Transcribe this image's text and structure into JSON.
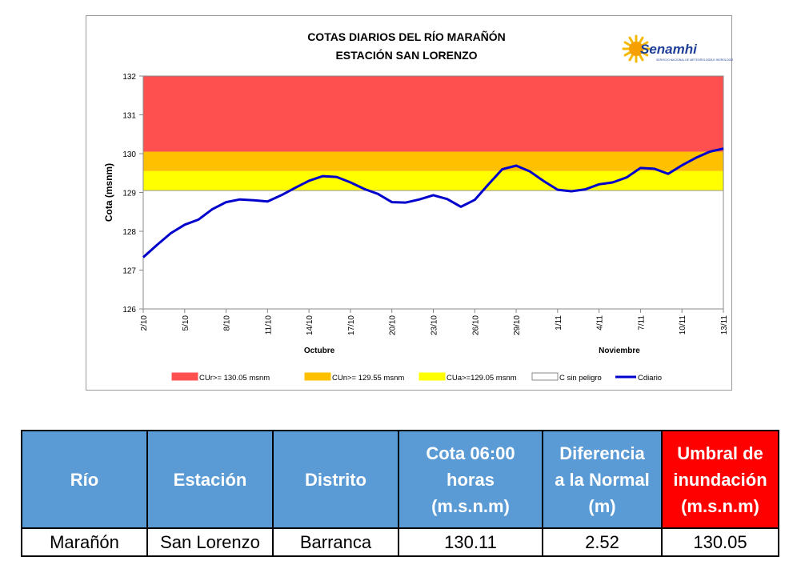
{
  "chart_data": {
    "type": "line",
    "title_lines": [
      "COTAS DIARIOS DEL RÍO MARAÑÓN",
      "ESTACIÓN SAN LORENZO"
    ],
    "ylabel": "Cota (msnm)",
    "ylim": [
      126,
      132
    ],
    "yticks": [
      "126",
      "127",
      "128",
      "129",
      "130",
      "131",
      "132"
    ],
    "x_tick_labels": [
      "2/10",
      "5/10",
      "8/10",
      "11/10",
      "14/10",
      "17/10",
      "20/10",
      "23/10",
      "26/10",
      "29/10",
      "1/11",
      "4/11",
      "7/11",
      "10/11",
      "13/11"
    ],
    "month_labels": [
      "Octubre",
      "Noviembre"
    ],
    "grid": false,
    "legend_position": "bottom",
    "logo": {
      "text": "Senamhi",
      "caption": "SERVICIO NACIONAL DE METEOROLOGÍA E HIDROLOGÍA DEL PERÚ"
    },
    "bands": [
      {
        "name": "CUr>= 130.05 msnm",
        "from": 130.05,
        "to": 132,
        "color": "#ff5050"
      },
      {
        "name": "CUn>= 129.55 msnm",
        "from": 129.55,
        "to": 130.05,
        "color": "#ffc000"
      },
      {
        "name": "CUa>=129.05 msnm",
        "from": 129.05,
        "to": 129.55,
        "color": "#ffff00"
      },
      {
        "name": "C sin peligro",
        "from": 126,
        "to": 129.05,
        "color": "#ffffff"
      }
    ],
    "series": [
      {
        "name": "Cdiario",
        "color": "#0000cc",
        "dates": [
          "2/10",
          "3/10",
          "4/10",
          "5/10",
          "6/10",
          "7/10",
          "8/10",
          "9/10",
          "10/10",
          "11/10",
          "12/10",
          "13/10",
          "14/10",
          "15/10",
          "16/10",
          "17/10",
          "18/10",
          "19/10",
          "20/10",
          "21/10",
          "22/10",
          "23/10",
          "24/10",
          "25/10",
          "26/10",
          "27/10",
          "28/10",
          "29/10",
          "30/10",
          "31/10",
          "1/11",
          "2/11",
          "3/11",
          "4/11",
          "5/11",
          "6/11",
          "7/11",
          "8/11",
          "9/11",
          "10/11",
          "11/11",
          "12/11",
          "13/11"
        ],
        "values": [
          127.33,
          127.65,
          127.95,
          128.17,
          128.3,
          128.57,
          128.75,
          128.82,
          128.8,
          128.77,
          128.93,
          129.12,
          129.3,
          129.42,
          129.4,
          129.26,
          129.09,
          128.96,
          128.75,
          128.74,
          128.82,
          128.93,
          128.83,
          128.63,
          128.81,
          129.21,
          129.6,
          129.69,
          129.54,
          129.29,
          129.07,
          129.03,
          129.08,
          129.21,
          129.26,
          129.39,
          129.63,
          129.61,
          129.48,
          129.7,
          129.89,
          130.05,
          130.13
        ]
      }
    ]
  },
  "table": {
    "headers": [
      {
        "lines": [
          "Río"
        ]
      },
      {
        "lines": [
          "Estación"
        ]
      },
      {
        "lines": [
          "Distrito"
        ]
      },
      {
        "lines": [
          "Cota 06:00",
          "horas",
          "(m.s.n.m)"
        ]
      },
      {
        "lines": [
          "Diferencia",
          "a la Normal",
          "(m)"
        ]
      },
      {
        "lines": [
          "Umbral de",
          "inundación",
          "(m.s.n.m)"
        ],
        "alert_color": "#ff0000"
      }
    ],
    "rows": [
      [
        "Marañón",
        "San Lorenzo",
        "Barranca",
        "130.11",
        "2.52",
        "130.05"
      ]
    ]
  }
}
